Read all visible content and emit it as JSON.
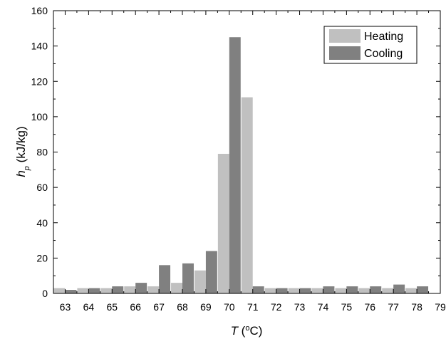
{
  "chart_data": {
    "type": "bar",
    "categories": [
      "63",
      "64",
      "65",
      "66",
      "67",
      "68",
      "69",
      "70",
      "71",
      "72",
      "73",
      "74",
      "75",
      "76",
      "77",
      "78"
    ],
    "x_ticks": [
      "63",
      "64",
      "65",
      "66",
      "67",
      "68",
      "69",
      "70",
      "71",
      "72",
      "73",
      "74",
      "75",
      "76",
      "77",
      "78",
      "79"
    ],
    "y_ticks": [
      "0",
      "20",
      "40",
      "60",
      "80",
      "100",
      "120",
      "140",
      "160"
    ],
    "ylim": [
      0,
      160
    ],
    "xlim": [
      62.5,
      79
    ],
    "series": [
      {
        "name": "Heating",
        "color": "#c0c0c0",
        "values": [
          3,
          3,
          3,
          4,
          4,
          6,
          13,
          79,
          111,
          3,
          3,
          3,
          3,
          3,
          3,
          3
        ]
      },
      {
        "name": "Cooling",
        "color": "#808080",
        "values": [
          2,
          3,
          4,
          6,
          16,
          17,
          24,
          145,
          4,
          3,
          3,
          4,
          4,
          4,
          5,
          4
        ]
      }
    ],
    "xlabel": {
      "var": "T",
      "open": " (",
      "sup": "o",
      "unit": "C)"
    },
    "ylabel": {
      "var": "h",
      "sub": "p",
      "unit": " (kJ/kg)"
    },
    "legend_position": "top-right",
    "grid": false
  }
}
